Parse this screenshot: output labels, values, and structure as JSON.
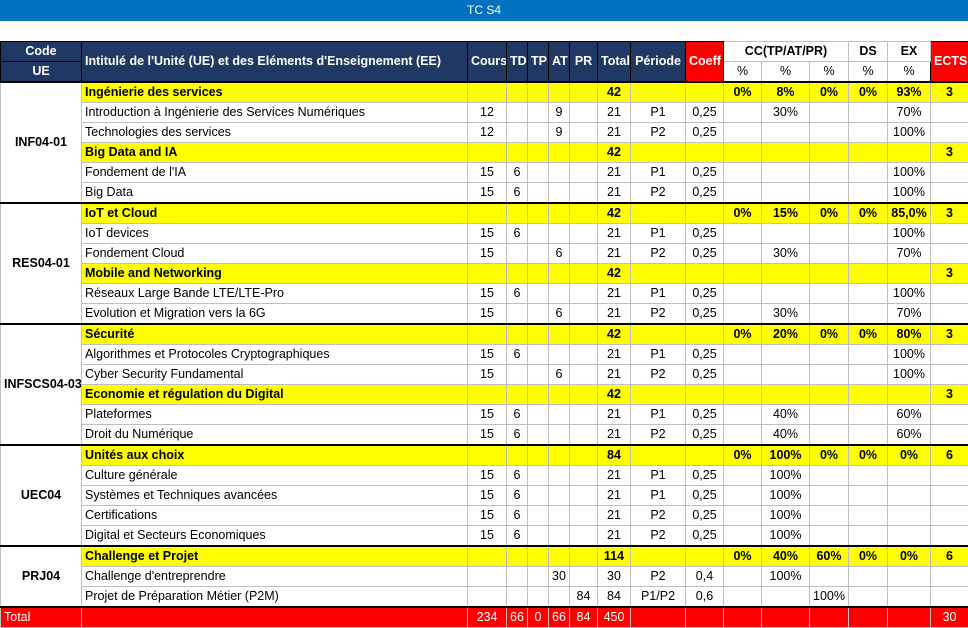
{
  "title": "TC S4",
  "headers": {
    "code": "Code",
    "ue": "UE",
    "intitule": "Intitulé de l'Unité (UE) et des Eléments d'Enseignement (EE)",
    "cours": "Cours",
    "td": "TD",
    "tp": "TP",
    "at": "AT",
    "pr": "PR",
    "total": "Total",
    "periode": "Période",
    "coeff": "Coeff",
    "cc": "CC(TP/AT/PR)",
    "ds": "DS",
    "ex": "EX",
    "ects": "ECTS",
    "pct": "%"
  },
  "units": [
    {
      "code": "INF04-01",
      "rows": [
        {
          "type": "ue",
          "name": "Ingénierie des services",
          "total": "42",
          "cc1": "0%",
          "cc2": "8%",
          "cc3": "0%",
          "ds": "0%",
          "ex": "93%",
          "ects": "3"
        },
        {
          "type": "ee",
          "name": "Introduction à Ingénierie des Services Numériques",
          "cours": "12",
          "at": "9",
          "total": "21",
          "periode": "P1",
          "coeff": "0,25",
          "cc2": "30%",
          "ex": "70%"
        },
        {
          "type": "ee",
          "name": "Technologies des services",
          "cours": "12",
          "at": "9",
          "total": "21",
          "periode": "P2",
          "coeff": "0,25",
          "ex": "100%"
        },
        {
          "type": "ue",
          "name": "Big Data and IA",
          "total": "42",
          "ects": "3"
        },
        {
          "type": "ee",
          "name": "Fondement de l'IA",
          "cours": "15",
          "td": "6",
          "total": "21",
          "periode": "P1",
          "coeff": "0,25",
          "ex": "100%"
        },
        {
          "type": "ee",
          "name": "Big Data",
          "cours": "15",
          "td": "6",
          "total": "21",
          "periode": "P2",
          "coeff": "0,25",
          "ex": "100%"
        }
      ]
    },
    {
      "code": "RES04-01",
      "rows": [
        {
          "type": "ue",
          "name": "IoT et Cloud",
          "total": "42",
          "cc1": "0%",
          "cc2": "15%",
          "cc3": "0%",
          "ds": "0%",
          "ex": "85,0%",
          "ects": "3"
        },
        {
          "type": "ee",
          "name": "IoT  devices",
          "cours": "15",
          "td": "6",
          "total": "21",
          "periode": "P1",
          "coeff": "0,25",
          "ex": "100%"
        },
        {
          "type": "ee",
          "name": "Fondement Cloud",
          "cours": "15",
          "at": "6",
          "total": "21",
          "periode": "P2",
          "coeff": "0,25",
          "cc2": "30%",
          "ex": "70%"
        },
        {
          "type": "ue",
          "name": "Mobile and Networking",
          "total": "42",
          "ects": "3"
        },
        {
          "type": "ee",
          "name": "Réseaux  Large Bande LTE/LTE-Pro",
          "cours": "15",
          "td": "6",
          "total": "21",
          "periode": "P1",
          "coeff": "0,25",
          "ex": "100%"
        },
        {
          "type": "ee",
          "name": "Evolution et Migration vers la 6G",
          "cours": "15",
          "at": "6",
          "total": "21",
          "periode": "P2",
          "coeff": "0,25",
          "cc2": "30%",
          "ex": "70%"
        }
      ]
    },
    {
      "code": "INFSCS04-03",
      "rows": [
        {
          "type": "ue",
          "name": "Sécurité",
          "total": "42",
          "cc1": "0%",
          "cc2": "20%",
          "cc3": "0%",
          "ds": "0%",
          "ex": "80%",
          "ects": "3"
        },
        {
          "type": "ee",
          "name": "Algorithmes et Protocoles Cryptographiques",
          "cours": "15",
          "td": "6",
          "total": "21",
          "periode": "P1",
          "coeff": "0,25",
          "ex": "100%"
        },
        {
          "type": "ee",
          "name": "Cyber Security Fundamental",
          "cours": "15",
          "at": "6",
          "total": "21",
          "periode": "P2",
          "coeff": "0,25",
          "ex": "100%"
        },
        {
          "type": "ue",
          "name": "Economie et régulation du Digital",
          "total": "42",
          "ects": "3"
        },
        {
          "type": "ee",
          "name": "Plateformes",
          "cours": "15",
          "td": "6",
          "total": "21",
          "periode": "P1",
          "coeff": "0,25",
          "cc2": "40%",
          "ex": "60%"
        },
        {
          "type": "ee",
          "name": "Droit du Numérique",
          "cours": "15",
          "td": "6",
          "total": "21",
          "periode": "P2",
          "coeff": "0,25",
          "cc2": "40%",
          "ex": "60%"
        }
      ]
    },
    {
      "code": "UEC04",
      "rows": [
        {
          "type": "ue",
          "name": "Unités aux choix",
          "total": "84",
          "cc1": "0%",
          "cc2": "100%",
          "cc3": "0%",
          "ds": "0%",
          "ex": "0%",
          "ects": "6"
        },
        {
          "type": "ee",
          "name": "Culture générale",
          "cours": "15",
          "td": "6",
          "total": "21",
          "periode": "P1",
          "coeff": "0,25",
          "cc2": "100%"
        },
        {
          "type": "ee",
          "name": "Systèmes et Techniques avancées",
          "cours": "15",
          "td": "6",
          "total": "21",
          "periode": "P1",
          "coeff": "0,25",
          "cc2": "100%"
        },
        {
          "type": "ee",
          "name": "Certifications",
          "cours": "15",
          "td": "6",
          "total": "21",
          "periode": "P2",
          "coeff": "0,25",
          "cc2": "100%"
        },
        {
          "type": "ee",
          "name": "Digital et Secteurs Economiques",
          "cours": "15",
          "td": "6",
          "total": "21",
          "periode": "P2",
          "coeff": "0,25",
          "cc2": "100%"
        }
      ]
    },
    {
      "code": "PRJ04",
      "rows": [
        {
          "type": "ue",
          "name": "Challenge et Projet",
          "total": "114",
          "cc1": "0%",
          "cc2": "40%",
          "cc3": "60%",
          "ds": "0%",
          "ex": "0%",
          "ects": "6"
        },
        {
          "type": "ee",
          "name": "Challenge d'entreprendre",
          "at": "30",
          "total": "30",
          "periode": "P2",
          "coeff": "0,4",
          "cc2": "100%"
        },
        {
          "type": "ee",
          "name": "Projet de Préparation Métier (P2M)",
          "pr": "84",
          "total": "84",
          "periode": "P1/P2",
          "coeff": "0,6",
          "cc3": "100%"
        }
      ]
    }
  ],
  "total_row": {
    "label": "Total",
    "cours": "234",
    "td": "66",
    "tp": "0",
    "at": "66",
    "pr": "84",
    "total": "450",
    "ects": "30"
  }
}
